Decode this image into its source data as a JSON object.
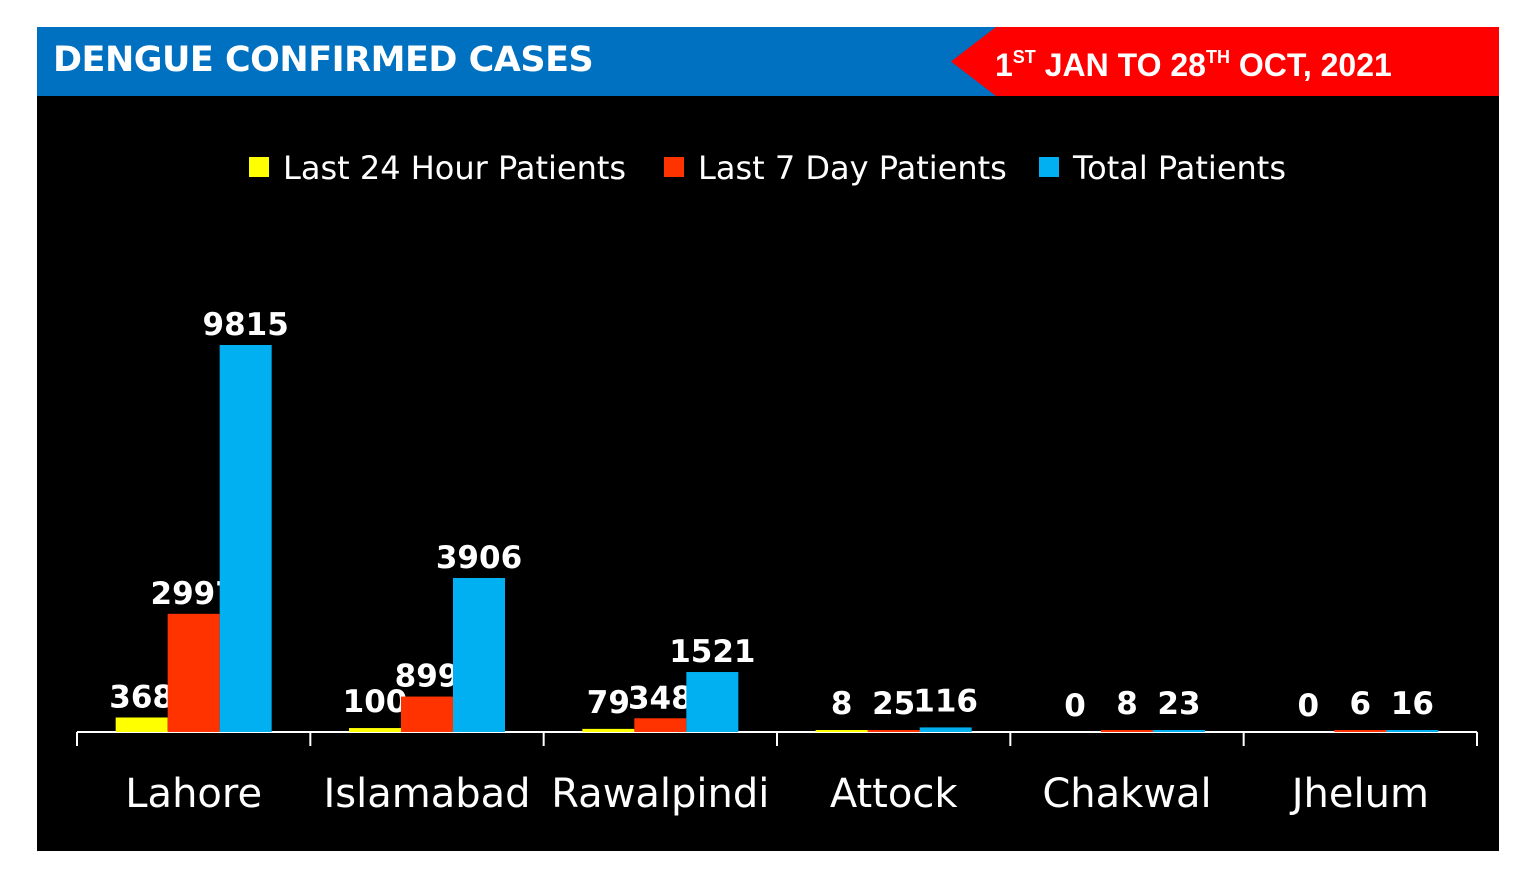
{
  "header": {
    "title": "DENGUE CONFIRMED CASES",
    "date_range": {
      "day1": "1",
      "day1_suffix": "ST",
      "middle": " JAN TO 28",
      "day2_suffix": "TH",
      "end": " OCT, 2021"
    },
    "band_color": "#0070c0",
    "ribbon_color": "#ff0000"
  },
  "chart_data": {
    "type": "bar",
    "title": "DENGUE CONFIRMED CASES",
    "xlabel": "",
    "ylabel": "",
    "grid": false,
    "legend_position": "top-center",
    "categories": [
      "Lahore",
      "Islamabad",
      "Rawalpindi",
      "Attock",
      "Chakwal",
      "Jhelum"
    ],
    "series": [
      {
        "name": "Last 24 Hour Patients",
        "color": "#ffff00",
        "values": [
          368,
          100,
          79,
          8,
          0,
          0
        ]
      },
      {
        "name": "Last 7 Day Patients",
        "color": "#ff3300",
        "values": [
          2997,
          899,
          348,
          25,
          8,
          6
        ]
      },
      {
        "name": "Total Patients",
        "color": "#00b0f0",
        "values": [
          9815,
          3906,
          1521,
          116,
          23,
          16
        ]
      }
    ],
    "ylim": [
      0,
      11000
    ]
  }
}
